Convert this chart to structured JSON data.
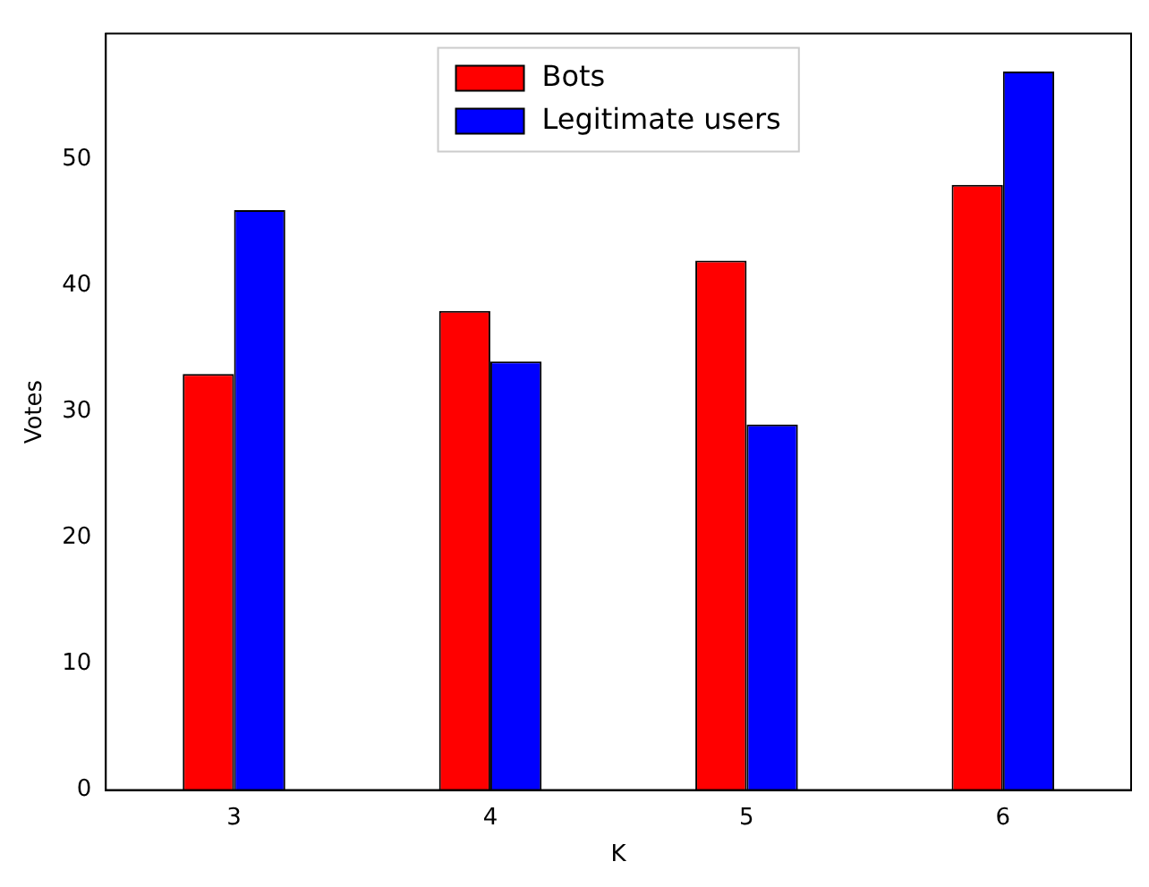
{
  "chart_data": {
    "type": "bar",
    "xlabel": "K",
    "ylabel": "Votes",
    "categories": [
      "3",
      "4",
      "5",
      "6"
    ],
    "series": [
      {
        "name": "Bots",
        "color": "#ff0000",
        "values": [
          33,
          38,
          42,
          48
        ]
      },
      {
        "name": "Legitimate users",
        "color": "#0000ff",
        "values": [
          46,
          34,
          29,
          57
        ]
      }
    ],
    "ylim": [
      0,
      60
    ],
    "yticks": [
      0,
      10,
      20,
      30,
      40,
      50
    ],
    "grid": false,
    "legend": "top"
  }
}
